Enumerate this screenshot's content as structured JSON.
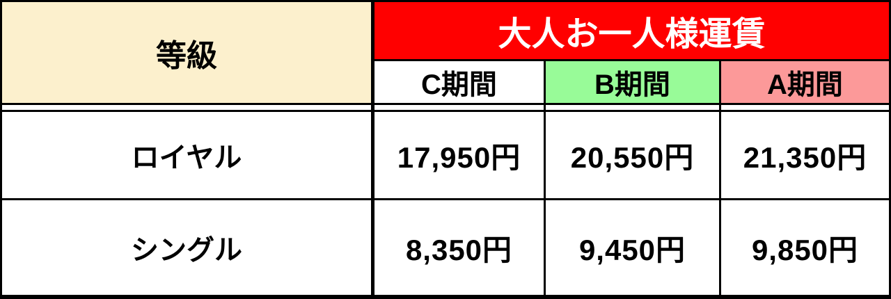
{
  "table": {
    "grade_header": "等級",
    "fare_header": "大人お一人様運賃",
    "period_headers": [
      {
        "label": "C期間",
        "bg": "#FFFFFF"
      },
      {
        "label": "B期間",
        "bg": "#98FB98"
      },
      {
        "label": "A期間",
        "bg": "#FC9999"
      }
    ],
    "rows": [
      {
        "grade": "ロイヤル",
        "fares": [
          "17,950円",
          "20,550円",
          "21,350円"
        ]
      },
      {
        "grade": "シングル",
        "fares": [
          "8,350円",
          "9,450円",
          "9,850円"
        ]
      }
    ],
    "colors": {
      "grade_header_bg": "#FCF0CD",
      "fare_header_bg": "#FF0000",
      "fare_header_text": "#FFFFFF",
      "border": "#000000",
      "body_text": "#000000"
    }
  }
}
